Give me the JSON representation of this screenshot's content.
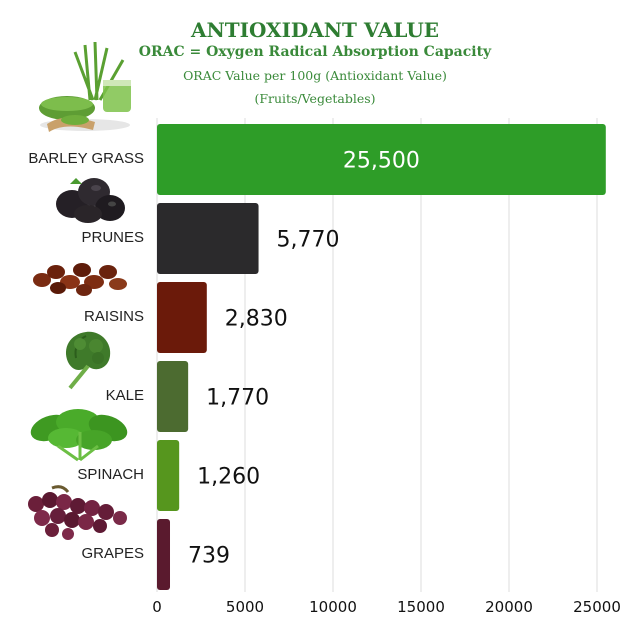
{
  "header": {
    "title": "ANTIOXIDANT VALUE",
    "subtitle": "ORAC = Oxygen Radical Absorption Capacity",
    "subtitle2": "ORAC Value per 100g (Antioxidant Value)",
    "subtitle3": "(Fruits/Vegetables)"
  },
  "chart_data": {
    "type": "bar",
    "orientation": "horizontal",
    "categories": [
      "BARLEY GRASS",
      "PRUNES",
      "RAISINS",
      "KALE",
      "SPINACH",
      "GRAPES"
    ],
    "values": [
      25500,
      5770,
      2830,
      1770,
      1260,
      739
    ],
    "value_labels": [
      "25,500",
      "5,770",
      "2,830",
      "1,770",
      "1,260",
      "739"
    ],
    "colors": [
      "#2e9d28",
      "#2b2a2c",
      "#6b1a0a",
      "#4c6b30",
      "#56961e",
      "#5a1a2e"
    ],
    "xticks": [
      0,
      5000,
      10000,
      15000,
      20000,
      25000
    ],
    "xlim": [
      0,
      25500
    ],
    "grid": true,
    "icons": [
      "barley-grass-icon",
      "prunes-icon",
      "raisins-icon",
      "kale-icon",
      "spinach-icon",
      "grapes-icon"
    ]
  }
}
